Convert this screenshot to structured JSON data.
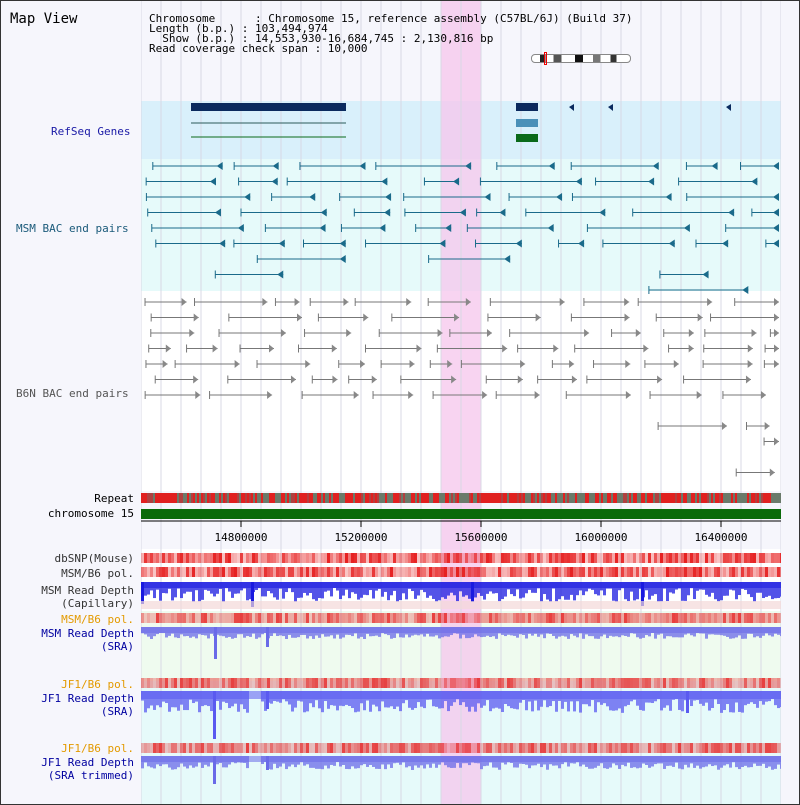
{
  "title": "Map View",
  "info": {
    "chromosome": "Chromosome      : Chromosome 15, reference assembly (C57BL/6J) (Build 37)",
    "length": "Length (b.p.) : 103,494,974",
    "show": "  Show (b.p.) : 14,553,930-16,684,745 : 2,130,816 bp",
    "coverage": "Read coverage check span : 10,000"
  },
  "tracks": {
    "refseq": "RefSeq Genes",
    "msm_bac": "MSM BAC end pairs",
    "b6n_bac": "B6N BAC end pairs",
    "repeat": "Repeat",
    "chromosome": "chromosome 15",
    "dbsnp": "dbSNP(Mouse)",
    "msm_b6_pol_1": "MSM/B6 pol.",
    "msm_depth_cap_1": "MSM Read Depth",
    "msm_depth_cap_2": "(Capillary)",
    "msm_b6_pol_2": "MSM/B6 pol.",
    "msm_depth_sra_1": "MSM Read Depth",
    "msm_depth_sra_2": "(SRA)",
    "jf1_pol_1": "JF1/B6 pol.",
    "jf1_depth_1": "JF1 Read Depth",
    "jf1_depth_2": "(SRA)",
    "jf1_pol_2": "JF1/B6 pol.",
    "jf1_trim_1": "JF1 Read Depth",
    "jf1_trim_2": "(SRA trimmed)"
  },
  "axis": {
    "ticks": [
      "14800000",
      "15200000",
      "15600000",
      "16000000",
      "16400000"
    ]
  },
  "colors": {
    "refseq_label": "#1a1aa6",
    "bac_label": "#1a5a7a",
    "jf1_label": "#e39a00",
    "depth_label": "#0000a0",
    "highlight": "#f5c6ec"
  }
}
